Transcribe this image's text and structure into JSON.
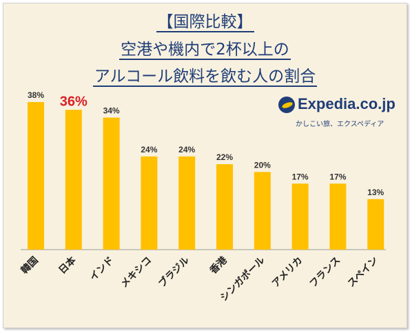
{
  "title": {
    "line1": "【国際比較】",
    "line2": "空港や機内で2杯以上の",
    "line3": "アルコール飲料を飲む人の割合"
  },
  "logo": {
    "name": "Expedia.co.jp",
    "tagline": "かしこい旅、エクスペディア",
    "icon": "globe-plane-icon"
  },
  "colors": {
    "bar": "#ffc000",
    "highlight": "#d92027",
    "title": "#1f3d78"
  },
  "chart_data": {
    "type": "bar",
    "categories": [
      "韓国",
      "日本",
      "インド",
      "メキシコ",
      "ブラジル",
      "香港",
      "シンガポール",
      "アメリカ",
      "フランス",
      "スペイン"
    ],
    "values": [
      38,
      36,
      34,
      24,
      24,
      22,
      20,
      17,
      17,
      13
    ],
    "value_labels": [
      "38%",
      "36%",
      "34%",
      "24%",
      "24%",
      "22%",
      "20%",
      "17%",
      "17%",
      "13%"
    ],
    "highlight_index": 1,
    "ylim": [
      0,
      40
    ],
    "grid": false,
    "legend": "none"
  }
}
